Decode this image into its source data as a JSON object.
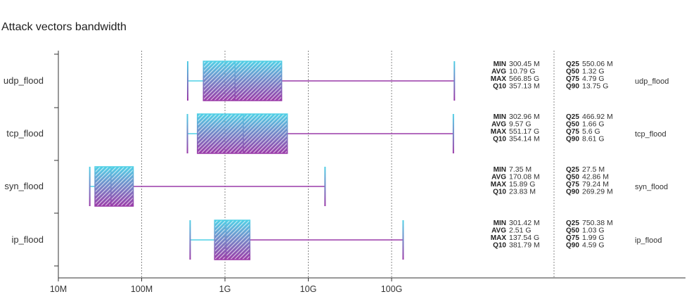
{
  "title": "Attack vectors bandwidth",
  "colors": {
    "top": "#4fd0e6",
    "bottom": "#9a3aa8",
    "grid": "#888888",
    "axis": "#333333"
  },
  "chart_data": {
    "type": "boxplot",
    "title": "Attack vectors bandwidth",
    "x_scale": "log",
    "xlim": [
      10000000,
      10000000000000
    ],
    "x_ticks": [
      {
        "value": 10000000,
        "label": "10M"
      },
      {
        "value": 100000000,
        "label": "100M"
      },
      {
        "value": 1000000000,
        "label": "1G"
      },
      {
        "value": 10000000000,
        "label": "10G"
      },
      {
        "value": 100000000000,
        "label": "100G"
      }
    ],
    "categories": [
      "udp_flood",
      "tcp_flood",
      "syn_flood",
      "ip_flood"
    ],
    "boxes": [
      {
        "name": "udp_flood",
        "whisker_low": 357130000,
        "q1": 550060000,
        "median": 1320000000,
        "q3": 4790000000,
        "whisker_high": 566850000000,
        "stats_left": [
          {
            "k": "MIN",
            "v": "300.45 M"
          },
          {
            "k": "AVG",
            "v": "10.79 G"
          },
          {
            "k": "MAX",
            "v": "566.85 G"
          },
          {
            "k": "Q10",
            "v": "357.13 M"
          }
        ],
        "stats_right": [
          {
            "k": "Q25",
            "v": "550.06 M"
          },
          {
            "k": "Q50",
            "v": "1.32 G"
          },
          {
            "k": "Q75",
            "v": "4.79 G"
          },
          {
            "k": "Q90",
            "v": "13.75 G"
          }
        ]
      },
      {
        "name": "tcp_flood",
        "whisker_low": 354140000,
        "q1": 466920000,
        "median": 1660000000,
        "q3": 5600000000,
        "whisker_high": 551170000000,
        "stats_left": [
          {
            "k": "MIN",
            "v": "302.96 M"
          },
          {
            "k": "AVG",
            "v": "9.57 G"
          },
          {
            "k": "MAX",
            "v": "551.17 G"
          },
          {
            "k": "Q10",
            "v": "354.14 M"
          }
        ],
        "stats_right": [
          {
            "k": "Q25",
            "v": "466.92 M"
          },
          {
            "k": "Q50",
            "v": "1.66 G"
          },
          {
            "k": "Q75",
            "v": "5.6 G"
          },
          {
            "k": "Q90",
            "v": "8.61 G"
          }
        ]
      },
      {
        "name": "syn_flood",
        "whisker_low": 23830000,
        "q1": 27500000,
        "median": 42860000,
        "q3": 79240000,
        "whisker_high": 15890000000,
        "stats_left": [
          {
            "k": "MIN",
            "v": "7.35 M"
          },
          {
            "k": "AVG",
            "v": "170.08 M"
          },
          {
            "k": "MAX",
            "v": "15.89 G"
          },
          {
            "k": "Q10",
            "v": "23.83 M"
          }
        ],
        "stats_right": [
          {
            "k": "Q25",
            "v": "27.5 M"
          },
          {
            "k": "Q50",
            "v": "42.86 M"
          },
          {
            "k": "Q75",
            "v": "79.24 M"
          },
          {
            "k": "Q90",
            "v": "269.29 M"
          }
        ]
      },
      {
        "name": "ip_flood",
        "whisker_low": 381790000,
        "q1": 750380000,
        "median": 1030000000,
        "q3": 1990000000,
        "whisker_high": 137540000000,
        "stats_left": [
          {
            "k": "MIN",
            "v": "301.42 M"
          },
          {
            "k": "AVG",
            "v": "2.51 G"
          },
          {
            "k": "MAX",
            "v": "137.54 G"
          },
          {
            "k": "Q10",
            "v": "381.79 M"
          }
        ],
        "stats_right": [
          {
            "k": "Q25",
            "v": "750.38 M"
          },
          {
            "k": "Q50",
            "v": "1.03 G"
          },
          {
            "k": "Q75",
            "v": "1.99 G"
          },
          {
            "k": "Q90",
            "v": "4.59 G"
          }
        ]
      }
    ]
  }
}
